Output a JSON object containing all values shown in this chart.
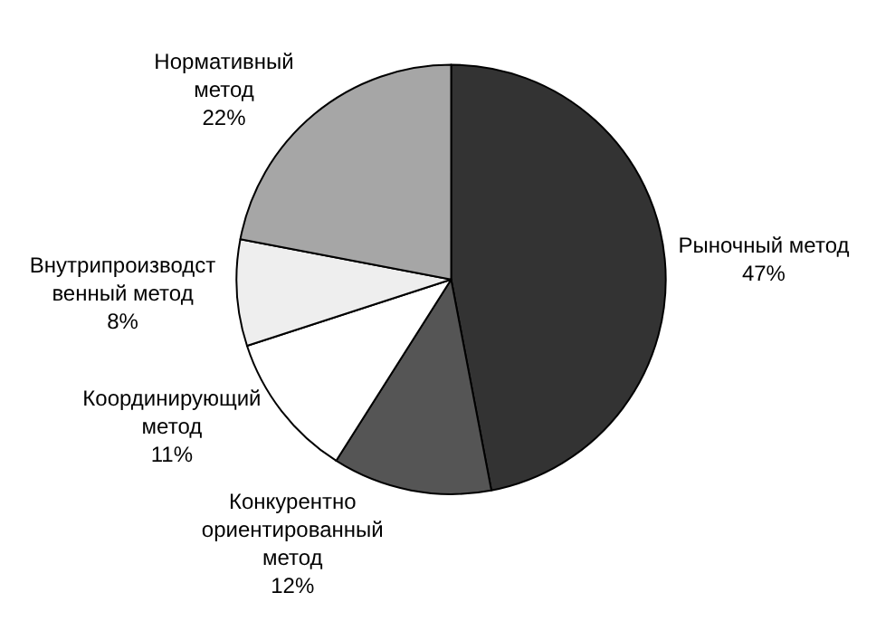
{
  "chart_data": {
    "type": "pie",
    "categories": [
      "Рыночный метод",
      "Конкурентно ориентированный метод",
      "Координирующий метод",
      "Внутрипроизводственный метод",
      "Нормативный метод"
    ],
    "values": [
      47,
      12,
      11,
      8,
      22
    ],
    "value_labels": [
      "47%",
      "12%",
      "11%",
      "8%",
      "22%"
    ],
    "colors": [
      "#333333",
      "#555555",
      "#ffffff",
      "#eeeeee",
      "#a6a6a6"
    ],
    "legend": false
  }
}
